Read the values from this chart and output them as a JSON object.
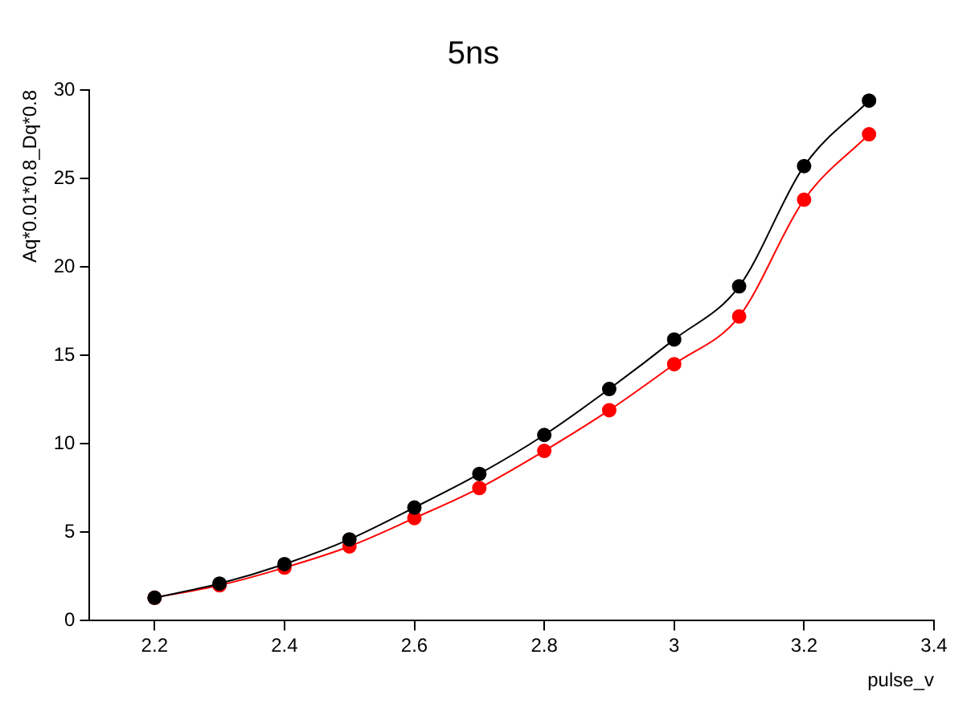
{
  "chart_data": {
    "type": "line",
    "title": "5ns",
    "xlabel": "pulse_v",
    "ylabel": "Aq*0.01*0.8_Dq*0.8",
    "x": [
      2.2,
      2.3,
      2.4,
      2.5,
      2.6,
      2.7,
      2.8,
      2.9,
      3.0,
      3.1,
      3.2,
      3.3
    ],
    "series": [
      {
        "color": "#000000",
        "values": [
          1.3,
          2.1,
          3.2,
          4.6,
          6.4,
          8.3,
          10.5,
          13.1,
          15.9,
          18.9,
          25.7,
          29.4
        ]
      },
      {
        "color": "#ff0000",
        "values": [
          1.3,
          2.0,
          3.0,
          4.2,
          5.8,
          7.5,
          9.6,
          11.9,
          14.5,
          17.2,
          23.8,
          27.5
        ]
      }
    ],
    "xlim": [
      2.1,
      3.4
    ],
    "xticks": [
      2.2,
      2.4,
      2.6,
      2.8,
      3,
      3.2,
      3.4
    ],
    "ylim": [
      0,
      30
    ],
    "yticks": [
      0,
      5,
      10,
      15,
      20,
      25,
      30
    ],
    "grid": false,
    "legend": false,
    "marker": "circle",
    "line_style": "solid"
  }
}
